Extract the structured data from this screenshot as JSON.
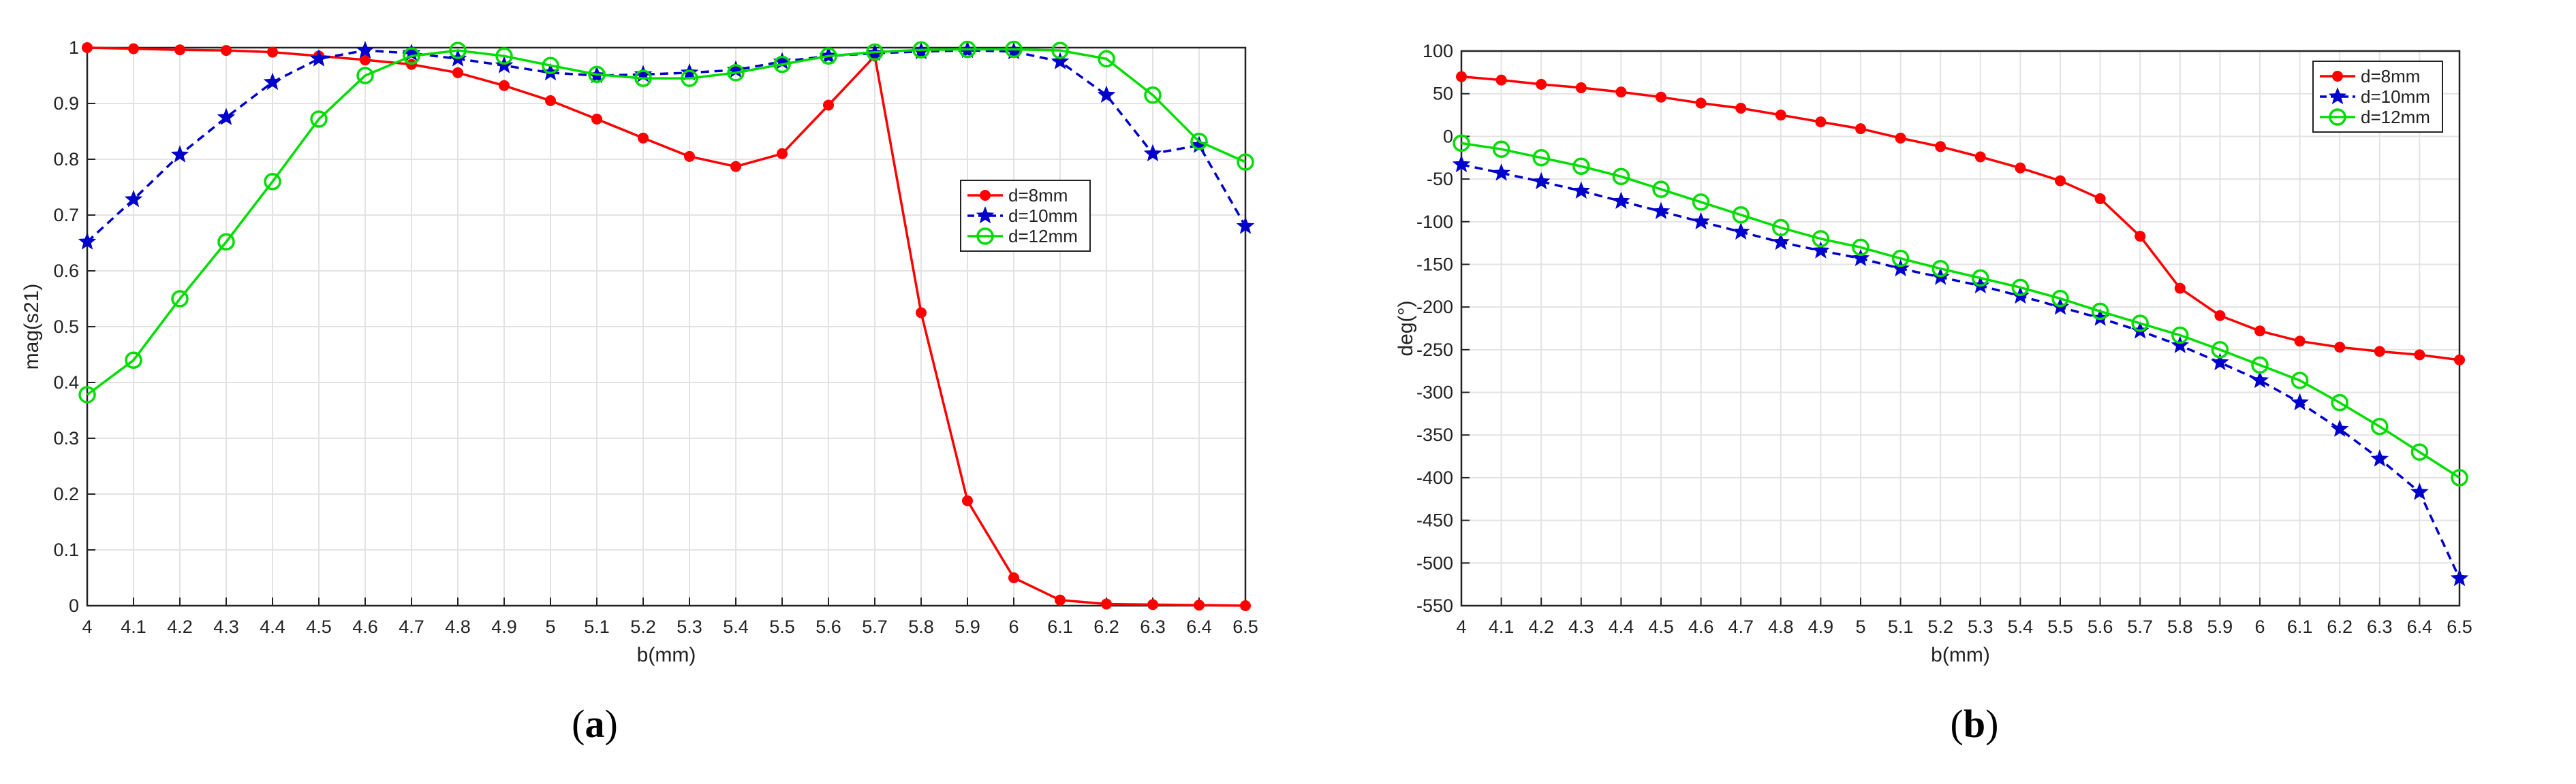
{
  "chart_data": [
    {
      "type": "line",
      "ylabel": "mag(s21)",
      "xlabel": "b(mm)",
      "caption_label": "a",
      "xlim": [
        4,
        6.5
      ],
      "ylim": [
        0,
        1
      ],
      "x": [
        4,
        4.1,
        4.2,
        4.3,
        4.4,
        4.5,
        4.6,
        4.7,
        4.8,
        4.9,
        5,
        5.1,
        5.2,
        5.3,
        5.4,
        5.5,
        5.6,
        5.7,
        5.8,
        5.9,
        6,
        6.1,
        6.2,
        6.3,
        6.4,
        6.5
      ],
      "x_ticks": [
        "4",
        "4.1",
        "4.2",
        "4.3",
        "4.4",
        "4.5",
        "4.6",
        "4.7",
        "4.8",
        "4.9",
        "5",
        "5.1",
        "5.2",
        "5.3",
        "5.4",
        "5.5",
        "5.6",
        "5.7",
        "5.8",
        "5.9",
        "6",
        "6.1",
        "6.2",
        "6.3",
        "6.4",
        "6.5"
      ],
      "y_ticks": [
        "0",
        "0.1",
        "0.2",
        "0.3",
        "0.4",
        "0.5",
        "0.6",
        "0.7",
        "0.8",
        "0.9",
        "1"
      ],
      "grid": true,
      "legend_position": "right",
      "series": [
        {
          "name": "d=8mm",
          "color": "#ff0000",
          "marker": "dot",
          "line": "solid",
          "values": [
            1.0,
            0.998,
            0.996,
            0.995,
            0.992,
            0.985,
            0.978,
            0.97,
            0.955,
            0.932,
            0.905,
            0.872,
            0.838,
            0.805,
            0.787,
            0.81,
            0.897,
            0.985,
            0.525,
            0.188,
            0.05,
            0.01,
            0.003,
            0.002,
            0.001,
            0.0
          ]
        },
        {
          "name": "d=10mm",
          "color": "#0000cc",
          "marker": "star",
          "line": "dashed",
          "values": [
            0.652,
            0.728,
            0.808,
            0.875,
            0.938,
            0.98,
            0.995,
            0.99,
            0.98,
            0.968,
            0.955,
            0.95,
            0.952,
            0.955,
            0.96,
            0.975,
            0.985,
            0.99,
            0.993,
            0.995,
            0.993,
            0.975,
            0.915,
            0.81,
            0.825,
            0.68
          ]
        },
        {
          "name": "d=12mm",
          "color": "#00dd00",
          "marker": "circle",
          "line": "solid",
          "values": [
            0.378,
            0.44,
            0.55,
            0.652,
            0.76,
            0.872,
            0.95,
            0.985,
            0.995,
            0.985,
            0.968,
            0.952,
            0.945,
            0.945,
            0.955,
            0.97,
            0.985,
            0.992,
            0.996,
            0.997,
            0.997,
            0.995,
            0.98,
            0.915,
            0.832,
            0.795
          ]
        }
      ]
    },
    {
      "type": "line",
      "ylabel": "deg(°)",
      "xlabel": "b(mm)",
      "caption_label": "b",
      "xlim": [
        4,
        6.5
      ],
      "ylim": [
        -550,
        100
      ],
      "x": [
        4,
        4.1,
        4.2,
        4.3,
        4.4,
        4.5,
        4.6,
        4.7,
        4.8,
        4.9,
        5,
        5.1,
        5.2,
        5.3,
        5.4,
        5.5,
        5.6,
        5.7,
        5.8,
        5.9,
        6,
        6.1,
        6.2,
        6.3,
        6.4,
        6.5
      ],
      "x_ticks": [
        "4",
        "4.1",
        "4.2",
        "4.3",
        "4.4",
        "4.5",
        "4.6",
        "4.7",
        "4.8",
        "4.9",
        "5",
        "5.1",
        "5.2",
        "5.3",
        "5.4",
        "5.5",
        "5.6",
        "5.7",
        "5.8",
        "5.9",
        "6",
        "6.1",
        "6.2",
        "6.3",
        "6.4",
        "6.5"
      ],
      "y_ticks": [
        "100",
        "50",
        "0",
        "-50",
        "-100",
        "-150",
        "-200",
        "-250",
        "-300",
        "-350",
        "-400",
        "-450",
        "-500",
        "-550"
      ],
      "grid": true,
      "legend_position": "top-right",
      "series": [
        {
          "name": "d=8mm",
          "color": "#ff0000",
          "marker": "dot",
          "line": "solid",
          "values": [
            70,
            66,
            61,
            57,
            52,
            46,
            39,
            33,
            25,
            17,
            9,
            -2,
            -12,
            -24,
            -37,
            -52,
            -73,
            -117,
            -178,
            -210,
            -228,
            -240,
            -247,
            -252,
            -256,
            -262
          ]
        },
        {
          "name": "d=10mm",
          "color": "#0000cc",
          "marker": "star",
          "line": "dashed",
          "values": [
            -33,
            -43,
            -53,
            -64,
            -76,
            -88,
            -100,
            -112,
            -124,
            -134,
            -143,
            -155,
            -165,
            -175,
            -187,
            -200,
            -213,
            -228,
            -245,
            -265,
            -286,
            -312,
            -343,
            -378,
            -417,
            -518
          ]
        },
        {
          "name": "d=12mm",
          "color": "#00dd00",
          "marker": "circle",
          "line": "solid",
          "values": [
            -8,
            -15,
            -25,
            -35,
            -47,
            -62,
            -77,
            -92,
            -107,
            -120,
            -130,
            -143,
            -155,
            -166,
            -177,
            -190,
            -205,
            -219,
            -233,
            -250,
            -268,
            -286,
            -312,
            -340,
            -370,
            -400
          ]
        }
      ]
    }
  ]
}
